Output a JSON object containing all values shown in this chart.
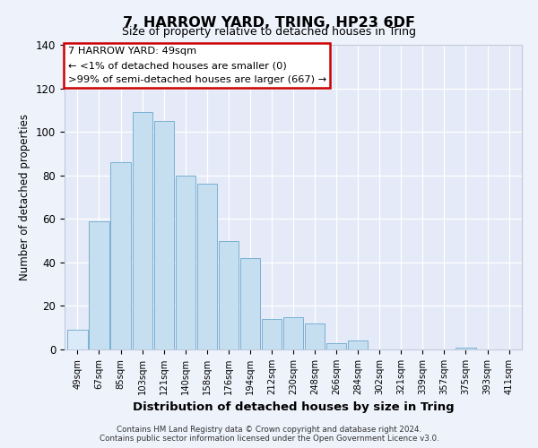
{
  "title": "7, HARROW YARD, TRING, HP23 6DF",
  "subtitle": "Size of property relative to detached houses in Tring",
  "xlabel": "Distribution of detached houses by size in Tring",
  "ylabel": "Number of detached properties",
  "bar_labels": [
    "49sqm",
    "67sqm",
    "85sqm",
    "103sqm",
    "121sqm",
    "140sqm",
    "158sqm",
    "176sqm",
    "194sqm",
    "212sqm",
    "230sqm",
    "248sqm",
    "266sqm",
    "284sqm",
    "302sqm",
    "321sqm",
    "339sqm",
    "357sqm",
    "375sqm",
    "393sqm",
    "411sqm"
  ],
  "bar_values": [
    9,
    59,
    86,
    109,
    105,
    80,
    76,
    50,
    42,
    14,
    15,
    12,
    3,
    4,
    0,
    0,
    0,
    0,
    1,
    0,
    0
  ],
  "bar_color": "#c5dff0",
  "bar_edge_color": "#7ab0d4",
  "highlight_bar_index": 0,
  "highlight_color": "#daeaf8",
  "ylim": [
    0,
    140
  ],
  "yticks": [
    0,
    20,
    40,
    60,
    80,
    100,
    120,
    140
  ],
  "annotation_title": "7 HARROW YARD: 49sqm",
  "annotation_line1": "← <1% of detached houses are smaller (0)",
  "annotation_line2": ">99% of semi-detached houses are larger (667) →",
  "annotation_box_facecolor": "#ffffff",
  "annotation_box_edgecolor": "#cc0000",
  "footer1": "Contains HM Land Registry data © Crown copyright and database right 2024.",
  "footer2": "Contains public sector information licensed under the Open Government Licence v3.0.",
  "bg_color": "#eef2fb",
  "plot_bg_color": "#e4eaf7",
  "grid_color": "#ffffff",
  "spine_color": "#c0c8dc"
}
